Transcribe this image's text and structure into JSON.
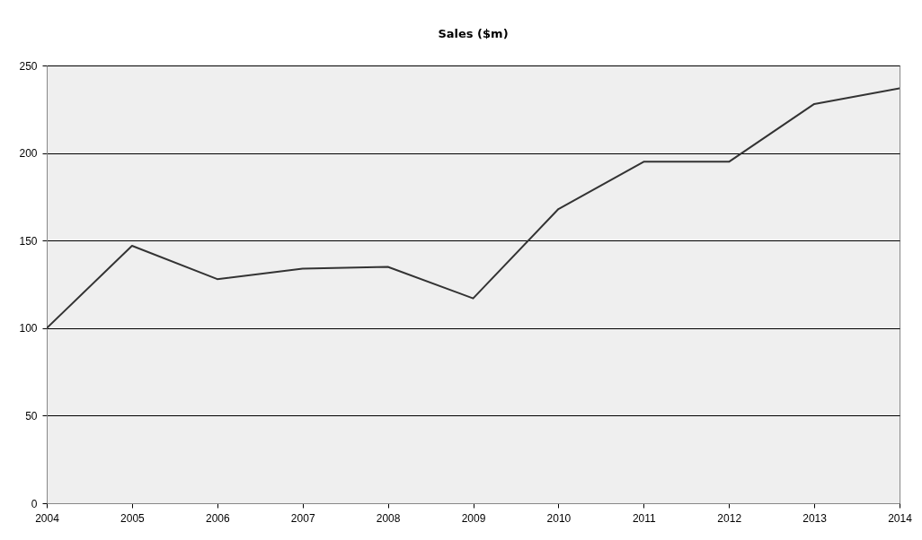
{
  "chart_data": {
    "type": "line",
    "title": "Sales ($m)",
    "x": [
      2004,
      2005,
      2006,
      2007,
      2008,
      2009,
      2010,
      2011,
      2012,
      2013,
      2014
    ],
    "series": [
      {
        "color": "#333333",
        "values": [
          100,
          147,
          128,
          134,
          135,
          117,
          168,
          195,
          195,
          228,
          237
        ]
      }
    ],
    "xlim": [
      2004,
      2014
    ],
    "xticks": [
      2004,
      2005,
      2006,
      2007,
      2008,
      2009,
      2010,
      2011,
      2012,
      2013,
      2014
    ],
    "ylim": [
      0,
      250
    ],
    "yticks": [
      0,
      50,
      100,
      150,
      200,
      250
    ],
    "grid": "y",
    "marker": "none",
    "line_style": "solid"
  }
}
